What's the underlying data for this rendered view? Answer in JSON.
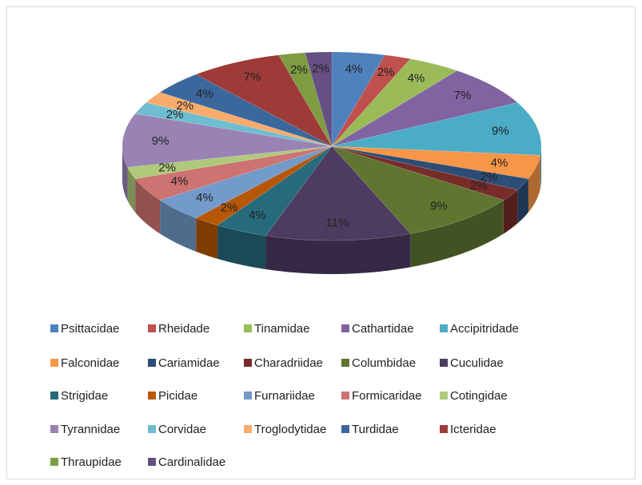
{
  "chart_data": {
    "type": "pie",
    "categories": [
      "Psittacidae",
      "Rheidade",
      "Tinamidae",
      "Cathartidae",
      "Accipitridade",
      "Falconidae",
      "Cariamidae",
      "Charadriidae",
      "Columbidae",
      "Cuculidae",
      "Strigidae",
      "Picidae",
      "Furnariidae",
      "Formicaridae",
      "Cotingidae",
      "Tyrannidae",
      "Corvidae",
      "Troglodytidae",
      "Turdidae",
      "Icteridae",
      "Thraupidae",
      "Cardinalidae"
    ],
    "values": [
      4,
      2,
      4,
      7,
      9,
      4,
      2,
      2,
      9,
      11,
      4,
      2,
      4,
      4,
      2,
      9,
      2,
      2,
      4,
      7,
      2,
      2
    ],
    "value_labels": [
      "4%",
      "2%",
      "4%",
      "7%",
      "9%",
      "4%",
      "2%",
      "2%",
      "9%",
      "11%",
      "4%",
      "2%",
      "4%",
      "4%",
      "2%",
      "9%",
      "2%",
      "2%",
      "4%",
      "7%",
      "2%",
      "2%"
    ],
    "colors": [
      "#4F81BD",
      "#C0504D",
      "#9BBB59",
      "#8064A2",
      "#4BACC6",
      "#F79646",
      "#2C4D75",
      "#772C2A",
      "#5F7530",
      "#4D3B62",
      "#276A7C",
      "#B65708",
      "#729ACA",
      "#CD7371",
      "#AFC97A",
      "#9983B5",
      "#6FBDD1",
      "#F9AB6B",
      "#3A679C",
      "#9E3B38",
      "#7E9C41",
      "#664F83"
    ],
    "legend": "bottom"
  }
}
